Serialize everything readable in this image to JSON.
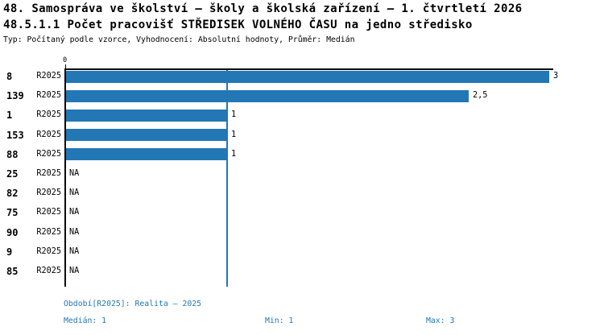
{
  "header": {
    "title_line1": "48. Samospráva ve školství – školy a školská zařízení – 1. čtvrtletí 2026",
    "title_line2": "48.5.1.1 Počet pracovišť STŘEDISEK VOLNÉHO ČASU na jedno středisko",
    "meta_line": "Typ: Počítaný podle vzorce, Vyhodnocení: Absolutní hodnoty, Průměr: Medián"
  },
  "chart_data": {
    "type": "bar",
    "orientation": "horizontal",
    "title": "48.5.1.1 Počet pracovišť STŘEDISEK VOLNÉHO ČASU na jedno středisko",
    "categories": [
      "8",
      "139",
      "1",
      "153",
      "88",
      "25",
      "82",
      "75",
      "90",
      "9",
      "85"
    ],
    "series": [
      {
        "name": "R2025",
        "values": [
          3,
          2.5,
          1,
          1,
          1,
          null,
          null,
          null,
          null,
          null,
          null
        ],
        "value_labels": [
          "3",
          "2,5",
          "1",
          "1",
          "1",
          "NA",
          "NA",
          "NA",
          "NA",
          "NA",
          "NA"
        ]
      }
    ],
    "xlabel": "",
    "ylabel": "",
    "xlim": [
      0,
      3
    ],
    "x_axis_ticks": [
      "0"
    ],
    "x_axis_position": "top",
    "grid": "single vertical reference line at x=1 (median)",
    "median_reference_line": 1,
    "colors": {
      "bar": "#2277b4",
      "annotation_text": "#1f77b4",
      "axis": "#000000",
      "category_text": "#000000"
    }
  },
  "footer": {
    "period_label": "Období[R2025]: Realita – 2025",
    "median_label": "Medián: 1",
    "min_label": "Min: 1",
    "max_label": "Max: 3"
  }
}
